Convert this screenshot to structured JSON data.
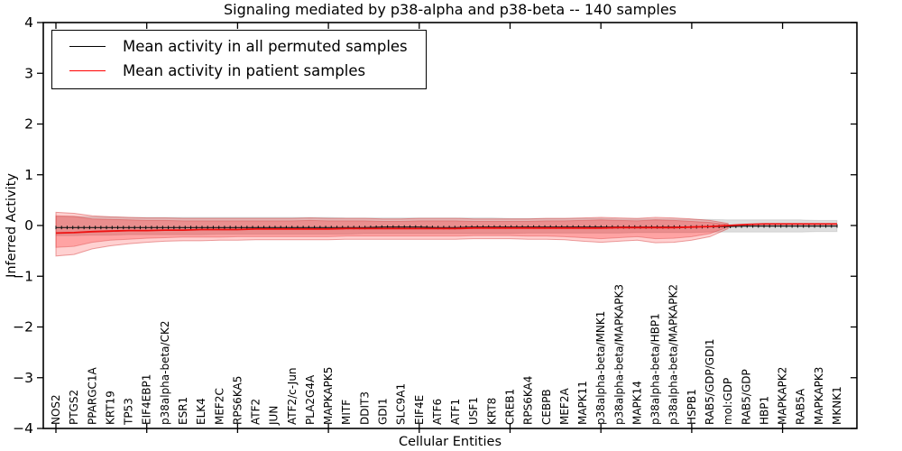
{
  "chart_data": {
    "type": "line",
    "title": "Signaling mediated by p38-alpha and p38-beta -- 140 samples",
    "xlabel": "Cellular Entities",
    "ylabel": "Inferred Activity",
    "ylim": [
      -4,
      4
    ],
    "yticks": [
      4,
      3,
      2,
      1,
      0,
      -1,
      -2,
      -3,
      -4
    ],
    "xtick_major_indices": [
      0,
      5,
      10,
      15,
      20,
      25,
      30,
      35,
      40
    ],
    "grid": false,
    "sample_markers": 140,
    "categories": [
      "NOS2",
      "PTGS2",
      "PPARGC1A",
      "KRT19",
      "TP53",
      "EIF4EBP1",
      "p38alpha-beta/CK2",
      "ESR1",
      "ELK4",
      "MEF2C",
      "RPS6KA5",
      "ATF2",
      "JUN",
      "ATF2/c-Jun",
      "PLA2G4A",
      "MAPKAPK5",
      "MITF",
      "DDIT3",
      "GDI1",
      "SLC9A1",
      "EIF4E",
      "ATF6",
      "ATF1",
      "USF1",
      "KRT8",
      "CREB1",
      "RPS6KA4",
      "CEBPB",
      "MEF2A",
      "MAPK11",
      "p38alpha-beta/MNK1",
      "p38alpha-beta/MAPKAPK3",
      "MAPK14",
      "p38alpha-beta/HBP1",
      "p38alpha-beta/MAPKAPK2",
      "HSPB1",
      "RAB5/GDP/GDI1",
      "mol:GDP",
      "RAB5/GDP",
      "HBP1",
      "MAPKAPK2",
      "RAB5A",
      "MAPKAPK3",
      "MKNK1"
    ],
    "legend": {
      "position": "upper left",
      "entries": [
        {
          "label": "Mean activity in all permuted samples",
          "color": "#000000"
        },
        {
          "label": "Mean activity in patient samples",
          "color": "#ff0000"
        }
      ]
    },
    "series": [
      {
        "name": "Mean activity in all permuted samples",
        "color": "#1a1a1a",
        "line_width": 1.2,
        "values": [
          -0.04,
          -0.04,
          -0.04,
          -0.04,
          -0.04,
          -0.04,
          -0.04,
          -0.04,
          -0.04,
          -0.04,
          -0.04,
          -0.04,
          -0.04,
          -0.04,
          -0.04,
          -0.04,
          -0.04,
          -0.04,
          -0.03,
          -0.03,
          -0.03,
          -0.04,
          -0.04,
          -0.03,
          -0.03,
          -0.03,
          -0.03,
          -0.03,
          -0.03,
          -0.03,
          -0.03,
          -0.03,
          -0.03,
          -0.03,
          -0.03,
          -0.03,
          -0.02,
          -0.02,
          -0.01,
          -0.01,
          -0.01,
          -0.01,
          -0.01,
          -0.01
        ],
        "band_top": [
          0.18,
          0.18,
          0.17,
          0.17,
          0.16,
          0.16,
          0.16,
          0.16,
          0.16,
          0.16,
          0.16,
          0.16,
          0.16,
          0.16,
          0.16,
          0.16,
          0.15,
          0.15,
          0.15,
          0.15,
          0.15,
          0.15,
          0.15,
          0.15,
          0.15,
          0.14,
          0.14,
          0.14,
          0.14,
          0.14,
          0.14,
          0.13,
          0.13,
          0.13,
          0.13,
          0.12,
          0.12,
          0.11,
          0.11,
          0.11,
          0.11,
          0.11,
          0.1,
          0.1
        ],
        "band_bottom": [
          -0.2,
          -0.2,
          -0.19,
          -0.19,
          -0.18,
          -0.18,
          -0.18,
          -0.18,
          -0.18,
          -0.17,
          -0.17,
          -0.17,
          -0.17,
          -0.17,
          -0.17,
          -0.17,
          -0.17,
          -0.16,
          -0.16,
          -0.16,
          -0.16,
          -0.16,
          -0.16,
          -0.16,
          -0.16,
          -0.16,
          -0.15,
          -0.15,
          -0.15,
          -0.15,
          -0.15,
          -0.15,
          -0.14,
          -0.14,
          -0.14,
          -0.14,
          -0.13,
          -0.13,
          -0.13,
          -0.13,
          -0.13,
          -0.13,
          -0.12,
          -0.12
        ],
        "band_fill": "rgba(0,0,0,0.13)",
        "band_edge": "rgba(0,0,0,0.10)"
      },
      {
        "name": "Mean activity in patient samples",
        "color": "#ee1111",
        "line_width": 1.8,
        "values": [
          -0.15,
          -0.14,
          -0.12,
          -0.11,
          -0.1,
          -0.1,
          -0.09,
          -0.09,
          -0.08,
          -0.08,
          -0.08,
          -0.07,
          -0.07,
          -0.07,
          -0.07,
          -0.07,
          -0.06,
          -0.06,
          -0.06,
          -0.06,
          -0.06,
          -0.06,
          -0.06,
          -0.05,
          -0.05,
          -0.05,
          -0.05,
          -0.05,
          -0.05,
          -0.05,
          -0.05,
          -0.04,
          -0.04,
          -0.04,
          -0.04,
          -0.03,
          -0.02,
          0.0,
          0.02,
          0.03,
          0.03,
          0.03,
          0.03,
          0.03
        ],
        "band_top": [
          0.26,
          0.24,
          0.19,
          0.17,
          0.16,
          0.15,
          0.15,
          0.14,
          0.14,
          0.14,
          0.14,
          0.14,
          0.14,
          0.14,
          0.15,
          0.14,
          0.14,
          0.14,
          0.13,
          0.13,
          0.14,
          0.14,
          0.14,
          0.13,
          0.13,
          0.13,
          0.13,
          0.14,
          0.14,
          0.15,
          0.16,
          0.15,
          0.14,
          0.16,
          0.15,
          0.13,
          0.1,
          0.04,
          null,
          null,
          null,
          null,
          null,
          null
        ],
        "band_bottom": [
          -0.6,
          -0.57,
          -0.46,
          -0.4,
          -0.36,
          -0.33,
          -0.31,
          -0.3,
          -0.3,
          -0.29,
          -0.29,
          -0.28,
          -0.28,
          -0.28,
          -0.28,
          -0.28,
          -0.27,
          -0.27,
          -0.27,
          -0.27,
          -0.27,
          -0.27,
          -0.27,
          -0.26,
          -0.26,
          -0.26,
          -0.27,
          -0.27,
          -0.28,
          -0.31,
          -0.33,
          -0.31,
          -0.29,
          -0.34,
          -0.33,
          -0.29,
          -0.22,
          -0.06,
          null,
          null,
          null,
          null,
          null,
          null
        ],
        "band_fill": "rgba(255,0,0,0.18)",
        "band_edge": "rgba(210,50,50,0.45)",
        "inner_band_top": [
          0.19,
          0.18,
          0.13,
          0.12,
          0.11,
          0.1,
          0.1,
          0.09,
          0.09,
          0.09,
          0.09,
          0.09,
          0.09,
          0.09,
          0.1,
          0.09,
          0.09,
          0.09,
          0.08,
          0.08,
          0.09,
          0.09,
          0.09,
          0.08,
          0.08,
          0.08,
          0.08,
          0.09,
          0.09,
          0.1,
          0.11,
          0.1,
          0.09,
          0.11,
          0.1,
          0.08,
          0.06,
          0.02,
          null,
          null,
          null,
          null,
          null,
          null
        ],
        "inner_band_bottom": [
          -0.43,
          -0.41,
          -0.33,
          -0.29,
          -0.27,
          -0.25,
          -0.24,
          -0.23,
          -0.23,
          -0.23,
          -0.22,
          -0.22,
          -0.22,
          -0.22,
          -0.22,
          -0.22,
          -0.21,
          -0.21,
          -0.21,
          -0.21,
          -0.21,
          -0.21,
          -0.21,
          -0.2,
          -0.2,
          -0.2,
          -0.21,
          -0.21,
          -0.22,
          -0.24,
          -0.26,
          -0.24,
          -0.22,
          -0.26,
          -0.25,
          -0.22,
          -0.16,
          -0.03,
          null,
          null,
          null,
          null,
          null,
          null
        ],
        "inner_band_fill": "rgba(255,0,0,0.22)",
        "inner_band_edge": "rgba(210,50,50,0.35)"
      }
    ]
  }
}
